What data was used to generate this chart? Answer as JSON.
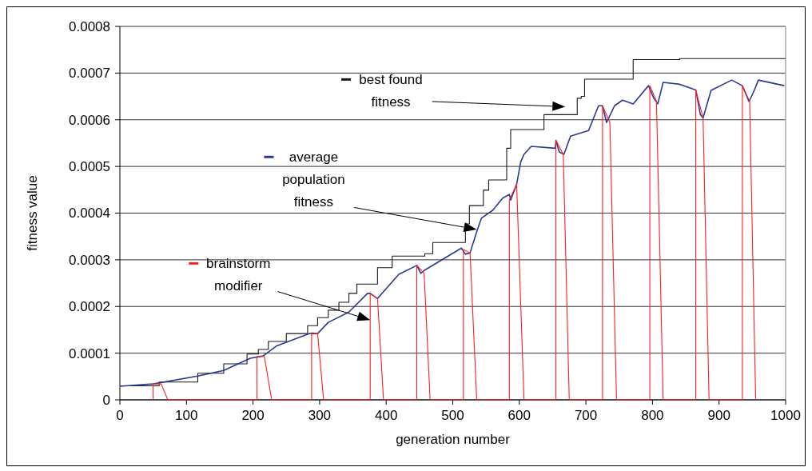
{
  "chart_data": {
    "type": "line",
    "xlabel": "generation number",
    "ylabel": "fitness value",
    "xlim": [
      0,
      1000
    ],
    "ylim": [
      0,
      0.0008
    ],
    "xticks": [
      0,
      100,
      200,
      300,
      400,
      500,
      600,
      700,
      800,
      900,
      1000
    ],
    "yticks": [
      0,
      0.0001,
      0.0002,
      0.0003,
      0.0004,
      0.0005,
      0.0006,
      0.0007,
      0.0008
    ],
    "grid": "y",
    "legend": "top left",
    "marker": "none",
    "line_style": "solid",
    "series": [
      {
        "name": "best found fitness",
        "type": "step",
        "color": "#1a1a1a",
        "x": [
          0,
          59,
          117,
          156,
          191,
          208,
          223,
          250,
          282,
          297,
          313,
          329,
          344,
          356,
          387,
          409,
          458,
          470,
          519,
          525,
          546,
          554,
          581,
          587,
          637,
          687,
          693,
          698,
          771,
          841,
          1000
        ],
        "values": [
          3e-05,
          3.8e-05,
          5.7e-05,
          7.7e-05,
          9.8e-05,
          0.000108,
          0.000125,
          0.000142,
          0.000159,
          0.000176,
          0.000192,
          0.000209,
          0.000228,
          0.000248,
          0.000283,
          0.000308,
          0.000313,
          0.000337,
          0.000377,
          0.000416,
          0.000449,
          0.000471,
          0.000539,
          0.000579,
          0.000611,
          0.000646,
          0.00065,
          0.000687,
          0.000729,
          0.000731,
          0.000731
        ]
      },
      {
        "name": "average population fitness",
        "color": "#2b3990",
        "x": [
          0,
          50,
          117,
          156,
          196,
          215,
          235,
          285,
          297,
          313,
          344,
          372,
          376,
          387,
          419,
          446,
          452,
          458,
          513,
          519,
          526,
          536,
          543,
          560,
          575,
          585,
          587,
          596,
          602,
          607,
          618,
          654,
          655,
          660,
          667,
          677,
          704,
          719,
          725,
          731,
          743,
          755,
          771,
          794,
          802,
          808,
          816,
          841,
          865,
          872,
          876,
          888,
          919,
          935,
          945,
          953,
          959,
          998
        ],
        "values": [
          2.9e-05,
          3.4e-05,
          5.1e-05,
          6.3e-05,
          8.9e-05,
          9.4e-05,
          0.000115,
          0.000142,
          0.000142,
          0.000166,
          0.000188,
          0.000228,
          0.000228,
          0.000217,
          0.000269,
          0.000288,
          0.000271,
          0.000278,
          0.000325,
          0.000312,
          0.000315,
          0.00036,
          0.000389,
          0.000406,
          0.000432,
          0.00044,
          0.000428,
          0.000462,
          0.000509,
          0.000526,
          0.000543,
          0.000539,
          0.000556,
          0.000531,
          0.000526,
          0.000565,
          0.000577,
          0.00063,
          0.00063,
          0.000594,
          0.00063,
          0.000642,
          0.000634,
          0.000673,
          0.000646,
          0.000634,
          0.00068,
          0.000676,
          0.000664,
          0.000611,
          0.000604,
          0.000663,
          0.000685,
          0.000673,
          0.000639,
          0.000663,
          0.000685,
          0.000673
        ]
      },
      {
        "name": "brainstorm modifier",
        "color": "#ff2020",
        "x": [
          50,
          50,
          62,
          72,
          206,
          206,
          217,
          228,
          288,
          288,
          297,
          306,
          376,
          376,
          387,
          396,
          446,
          446,
          457,
          466,
          516,
          516,
          526,
          536,
          585,
          585,
          596,
          607,
          655,
          655,
          666,
          675,
          725,
          725,
          736,
          746,
          796,
          796,
          806,
          816,
          865,
          865,
          876,
          885,
          935,
          935,
          946,
          955
        ],
        "values": [
          0,
          3.4e-05,
          3.4e-05,
          0,
          0,
          9.3e-05,
          9.3e-05,
          0,
          0,
          0.000144,
          0.000142,
          0,
          0,
          0.000228,
          0.000217,
          0,
          0,
          0.000288,
          0.000271,
          0,
          0,
          0.000322,
          0.000315,
          0,
          0,
          0.000428,
          0.000462,
          0,
          0,
          0.000556,
          0.000526,
          0,
          0,
          0.00063,
          0.000594,
          0,
          0,
          0.000673,
          0.00064,
          0,
          0,
          0.000664,
          0.000604,
          0,
          0,
          0.000673,
          0.000639,
          0
        ]
      }
    ]
  }
}
